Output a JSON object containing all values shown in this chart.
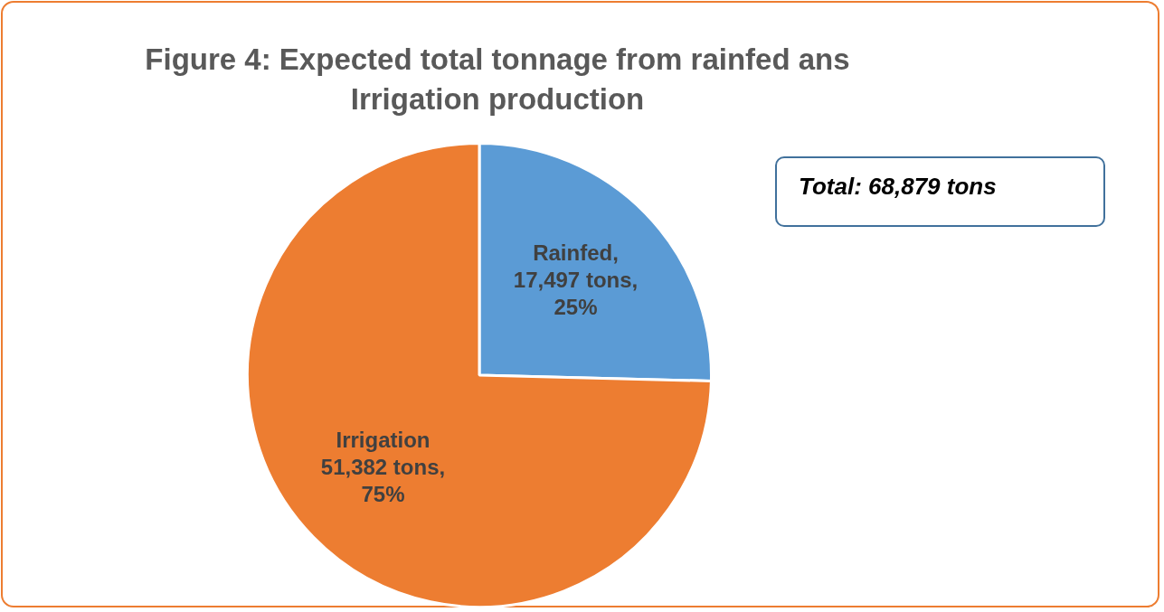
{
  "chart_data": {
    "type": "pie",
    "title": "Figure 4: Expected total tonnage from rainfed ans Irrigation production",
    "categories": [
      "Rainfed",
      "Irrigation"
    ],
    "values": [
      17497,
      51382
    ],
    "colors": [
      "#5b9bd5",
      "#ed7d31"
    ],
    "value_labels": [
      ",\n17,497 tons,\n25%",
      "\n51,382 tons,\n75%"
    ],
    "annotations": [
      "Total: 68,879 tons"
    ],
    "legend": false
  }
}
